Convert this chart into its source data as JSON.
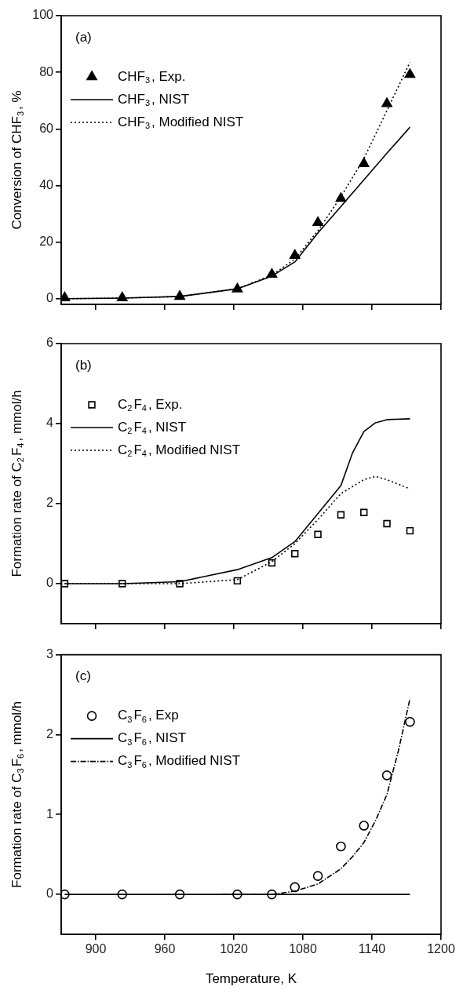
{
  "chart_data": [
    {
      "type": "line",
      "annotations": [
        "(a)"
      ],
      "ylabel": "Conversion of CHF$_{3}$, %",
      "xlim": [
        870,
        1200
      ],
      "xticks": [
        900,
        960,
        1020,
        1080,
        1140,
        1200
      ],
      "ylim": [
        -2,
        100
      ],
      "yticks": [
        0,
        20,
        40,
        60,
        80,
        100
      ],
      "tick_labels": "y",
      "grid": false,
      "legend": "top left",
      "series": [
        {
          "name": "CHF$_{3}$, Exp.",
          "type": "scatter",
          "marker": "triangle",
          "color": "#000000",
          "x": [
            873,
            923,
            973,
            1023,
            1053,
            1073,
            1093,
            1113,
            1133,
            1153,
            1173
          ],
          "values": [
            0.3,
            0.3,
            0.8,
            3.4,
            8.6,
            15.3,
            26.9,
            35.4,
            47.7,
            68.9,
            79.2
          ]
        },
        {
          "name": "CHF$_{3}$, NIST",
          "type": "line",
          "line_style": "solid",
          "color": "#000000",
          "x": [
            873,
            923,
            973,
            1023,
            1053,
            1073,
            1093,
            1113,
            1133,
            1153,
            1173
          ],
          "values": [
            0,
            0.2,
            0.8,
            3.5,
            8,
            13,
            23.2,
            32.6,
            42,
            51.4,
            60.6
          ]
        },
        {
          "name": "CHF$_{3}$, Modified NIST",
          "type": "line",
          "line_style": "dotted",
          "color": "#000000",
          "x": [
            873,
            923,
            973,
            1023,
            1053,
            1073,
            1093,
            1113,
            1133,
            1153,
            1173
          ],
          "values": [
            0,
            0.2,
            0.8,
            3.5,
            8.3,
            14,
            24,
            36,
            49.5,
            66.5,
            83.5
          ]
        }
      ]
    },
    {
      "type": "line",
      "annotations": [
        "(b)"
      ],
      "ylabel": "Formation rate of C$_{2}$F$_{4}$, mmol/h",
      "xlim": [
        870,
        1200
      ],
      "xticks": [
        900,
        960,
        1020,
        1080,
        1140,
        1200
      ],
      "ylim": [
        -1,
        6
      ],
      "yticks": [
        0,
        2,
        4,
        6
      ],
      "tick_labels": "y",
      "grid": false,
      "legend": "top left",
      "series": [
        {
          "name": "C$_{2}$F$_{4}$, Exp.",
          "type": "scatter",
          "marker": "square",
          "color": "#000000",
          "x": [
            873,
            923,
            973,
            1023,
            1053,
            1073,
            1093,
            1113,
            1133,
            1153,
            1173
          ],
          "values": [
            0,
            0,
            0,
            0.07,
            0.52,
            0.75,
            1.23,
            1.72,
            1.78,
            1.5,
            1.32
          ]
        },
        {
          "name": "C$_{2}$F$_{4}$, NIST",
          "type": "line",
          "line_style": "solid",
          "color": "#000000",
          "x": [
            873,
            923,
            973,
            1023,
            1053,
            1073,
            1093,
            1113,
            1123,
            1133,
            1143,
            1153,
            1173
          ],
          "values": [
            0,
            0,
            0.05,
            0.35,
            0.65,
            1.05,
            1.75,
            2.45,
            3.26,
            3.8,
            4.02,
            4.1,
            4.12
          ]
        },
        {
          "name": "C$_{2}$F$_{4}$, Modified NIST",
          "type": "line",
          "line_style": "dotted",
          "color": "#000000",
          "x": [
            873,
            923,
            973,
            1023,
            1053,
            1073,
            1093,
            1113,
            1133,
            1143,
            1153,
            1173
          ],
          "values": [
            0,
            0,
            0,
            0.1,
            0.55,
            1,
            1.6,
            2.25,
            2.6,
            2.68,
            2.6,
            2.37
          ]
        }
      ]
    },
    {
      "type": "line",
      "annotations": [
        "(c)"
      ],
      "ylabel": "Formation rate of C$_{3}$F$_{6}$, mmol/h",
      "xlabel": "Temperature, K",
      "xlim": [
        870,
        1200
      ],
      "xticks": [
        900,
        960,
        1020,
        1080,
        1140,
        1200
      ],
      "ylim": [
        -0.5,
        3
      ],
      "yticks": [
        0,
        1,
        2,
        3
      ],
      "grid": false,
      "legend": "top left",
      "series": [
        {
          "name": "C$_{3}$F$_{6}$, Exp",
          "type": "scatter",
          "marker": "circle",
          "color": "#000000",
          "x": [
            873,
            923,
            973,
            1023,
            1053,
            1073,
            1093,
            1113,
            1133,
            1153,
            1173
          ],
          "values": [
            0,
            0,
            0,
            0,
            0,
            0.09,
            0.23,
            0.6,
            0.86,
            1.49,
            2.16
          ]
        },
        {
          "name": "C$_{3}$F$_{6}$, NIST",
          "type": "line",
          "line_style": "solid",
          "color": "#000000",
          "x": [
            873,
            1173
          ],
          "values": [
            0,
            0
          ]
        },
        {
          "name": "C$_{3}$F$_{6}$, Modified NIST",
          "type": "line",
          "line_style": "dashed",
          "color": "#000000",
          "x": [
            1010,
            1053,
            1073,
            1093,
            1113,
            1123,
            1133,
            1143,
            1153,
            1163,
            1173
          ],
          "values": [
            0,
            0,
            0.04,
            0.13,
            0.32,
            0.47,
            0.65,
            0.92,
            1.25,
            1.8,
            2.45
          ]
        }
      ]
    }
  ]
}
